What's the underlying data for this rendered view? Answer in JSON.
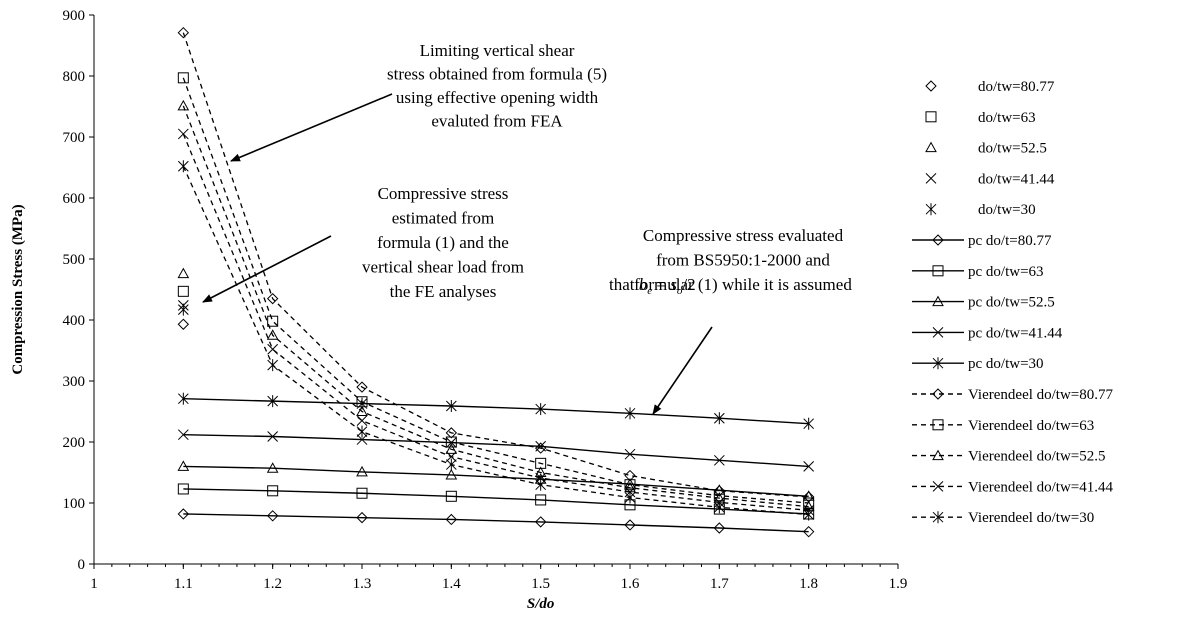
{
  "chart_data": {
    "type": "line",
    "xlabel": "S/do",
    "ylabel": "Compression Stress (MPa)",
    "xlim": [
      1,
      1.9
    ],
    "ylim": [
      0,
      900
    ],
    "x_ticks": [
      "1",
      "1.1",
      "1.2",
      "1.3",
      "1.4",
      "1.5",
      "1.6",
      "1.7",
      "1.8",
      "1.9"
    ],
    "y_ticks": [
      "0",
      "100",
      "200",
      "300",
      "400",
      "500",
      "600",
      "700",
      "800",
      "900"
    ],
    "grid": false,
    "legend_position": "right",
    "series": [
      {
        "name": "do/tw=80.77",
        "style": "markers",
        "marker": "diamond",
        "x": [
          1.1
        ],
        "y": [
          393
        ]
      },
      {
        "name": "do/tw=63",
        "style": "markers",
        "marker": "square",
        "x": [
          1.1
        ],
        "y": [
          447
        ]
      },
      {
        "name": "do/tw=52.5",
        "style": "markers",
        "marker": "triangle",
        "x": [
          1.1
        ],
        "y": [
          476
        ]
      },
      {
        "name": "do/tw=41.44",
        "style": "markers",
        "marker": "x",
        "x": [
          1.1
        ],
        "y": [
          424
        ]
      },
      {
        "name": "do/tw=30",
        "style": "markers",
        "marker": "star",
        "x": [
          1.1
        ],
        "y": [
          417
        ]
      },
      {
        "name": "pc do/t=80.77",
        "style": "solid",
        "marker": "diamond",
        "x": [
          1.1,
          1.2,
          1.3,
          1.4,
          1.5,
          1.6,
          1.7,
          1.8
        ],
        "y": [
          82,
          79,
          76,
          73,
          69,
          64,
          59,
          53
        ]
      },
      {
        "name": "pc do/tw=63",
        "style": "solid",
        "marker": "square",
        "x": [
          1.1,
          1.2,
          1.3,
          1.4,
          1.5,
          1.6,
          1.7,
          1.8
        ],
        "y": [
          123,
          120,
          116,
          111,
          105,
          97,
          90,
          82
        ]
      },
      {
        "name": "pc do/tw=52.5",
        "style": "solid",
        "marker": "triangle",
        "x": [
          1.1,
          1.2,
          1.3,
          1.4,
          1.5,
          1.6,
          1.7,
          1.8
        ],
        "y": [
          160,
          157,
          151,
          146,
          139,
          131,
          121,
          111
        ]
      },
      {
        "name": "pc do/tw=41.44",
        "style": "solid",
        "marker": "x",
        "x": [
          1.1,
          1.2,
          1.3,
          1.4,
          1.5,
          1.6,
          1.7,
          1.8
        ],
        "y": [
          212,
          209,
          204,
          199,
          193,
          180,
          170,
          160
        ]
      },
      {
        "name": "pc do/tw=30",
        "style": "solid",
        "marker": "star",
        "x": [
          1.1,
          1.2,
          1.3,
          1.4,
          1.5,
          1.6,
          1.7,
          1.8
        ],
        "y": [
          271,
          267,
          263,
          259,
          254,
          247,
          239,
          230
        ]
      },
      {
        "name": "Vierendeel do/tw=80.77",
        "style": "dashed",
        "marker": "diamond",
        "x": [
          1.1,
          1.2,
          1.3,
          1.4,
          1.5,
          1.6,
          1.7,
          1.8
        ],
        "y": [
          871,
          435,
          290,
          215,
          190,
          145,
          120,
          110
        ]
      },
      {
        "name": "Vierendeel do/tw=63",
        "style": "dashed",
        "marker": "square",
        "x": [
          1.1,
          1.2,
          1.3,
          1.4,
          1.5,
          1.6,
          1.7,
          1.8
        ],
        "y": [
          797,
          398,
          266,
          200,
          165,
          130,
          112,
          100
        ]
      },
      {
        "name": "Vierendeel do/tw=52.5",
        "style": "dashed",
        "marker": "triangle",
        "x": [
          1.1,
          1.2,
          1.3,
          1.4,
          1.5,
          1.6,
          1.7,
          1.8
        ],
        "y": [
          751,
          375,
          250,
          188,
          150,
          125,
          108,
          94
        ]
      },
      {
        "name": "Vierendeel do/tw=41.44",
        "style": "dashed",
        "marker": "x",
        "x": [
          1.1,
          1.2,
          1.3,
          1.4,
          1.5,
          1.6,
          1.7,
          1.8
        ],
        "y": [
          705,
          352,
          235,
          176,
          141,
          118,
          101,
          88
        ]
      },
      {
        "name": "Vierendeel do/tw=30",
        "style": "dashed",
        "marker": "star",
        "x": [
          1.1,
          1.2,
          1.3,
          1.4,
          1.5,
          1.6,
          1.7,
          1.8
        ],
        "y": [
          652,
          326,
          217,
          163,
          130,
          109,
          93,
          81
        ]
      }
    ],
    "annotations": [
      {
        "lines": [
          "Limiting vertical shear",
          "stress obtained from formula (5)",
          "using effective opening width",
          "evaluted from FEA"
        ]
      },
      {
        "lines": [
          "Compressive stress",
          "estimated from",
          "formula (1) and the",
          "vertical shear load from",
          "the FE analyses"
        ]
      },
      {
        "lines": [
          "Compressive stress evaluated",
          "from BS5950:1-2000 and",
          "formular (1) while it is assumed"
        ]
      }
    ],
    "annotation_last_line": {
      "lead": "that ",
      "b": "b",
      "b_sub": "e",
      "eq": " = ",
      "s": "s",
      "s_sub": "o",
      "tail": "/2"
    }
  }
}
